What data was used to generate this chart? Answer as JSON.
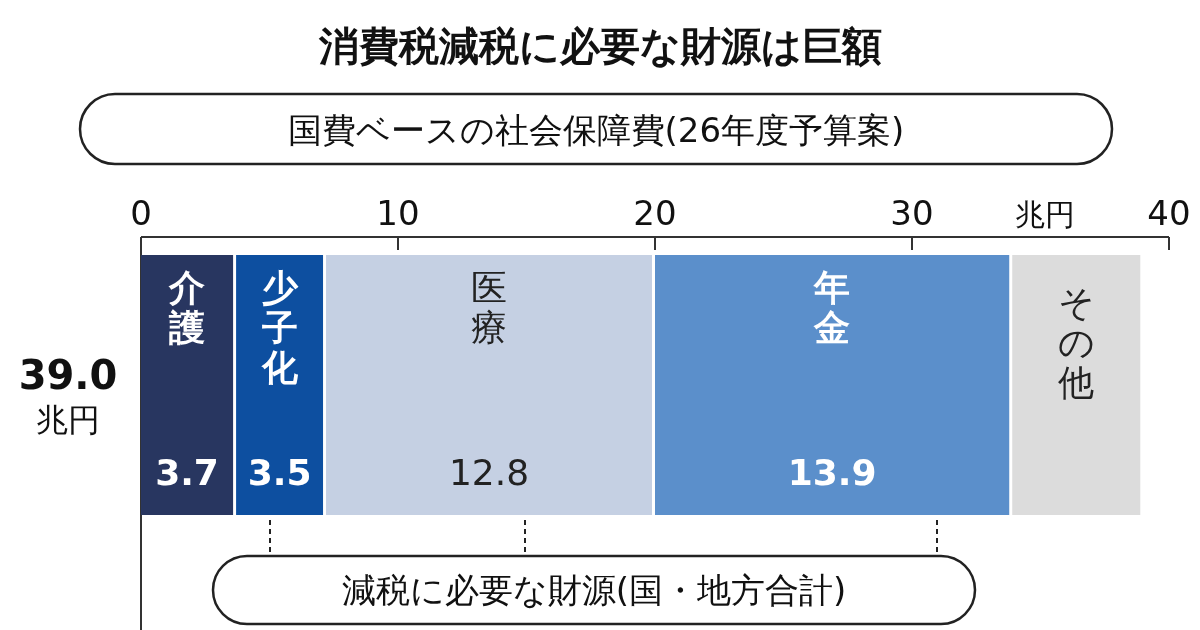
{
  "chart_data": {
    "type": "bar",
    "orientation": "horizontal",
    "stacked": true,
    "title": "消費税減税に必要な財源は巨額",
    "subtitle": "国費ベースの社会保障費(26年度予算案)",
    "xlabel": "兆円",
    "categories": [
      "39.0 兆円"
    ],
    "series": [
      {
        "name": "介護",
        "color": "#283660",
        "values": [
          3.7
        ],
        "value_labels": [
          "3.7"
        ]
      },
      {
        "name": "少子化",
        "color": "#0d4fa0",
        "values": [
          3.5
        ],
        "value_labels": [
          "3.5"
        ]
      },
      {
        "name": "医療",
        "color": "#c5d0e3",
        "values": [
          12.8
        ],
        "value_labels": [
          "12.8"
        ]
      },
      {
        "name": "年金",
        "color": "#5b8fcb",
        "values": [
          13.9
        ],
        "value_labels": [
          "13.9"
        ]
      },
      {
        "name": "その他",
        "color": "#dcdcdc",
        "values": [
          5.1
        ],
        "value_labels": [
          null
        ]
      }
    ],
    "xlim": [
      0,
      40
    ],
    "xticks": [
      0,
      10,
      20,
      30,
      40
    ],
    "grid": false,
    "annotations": [
      "減税に必要な財源(国・地方合計)"
    ]
  }
}
